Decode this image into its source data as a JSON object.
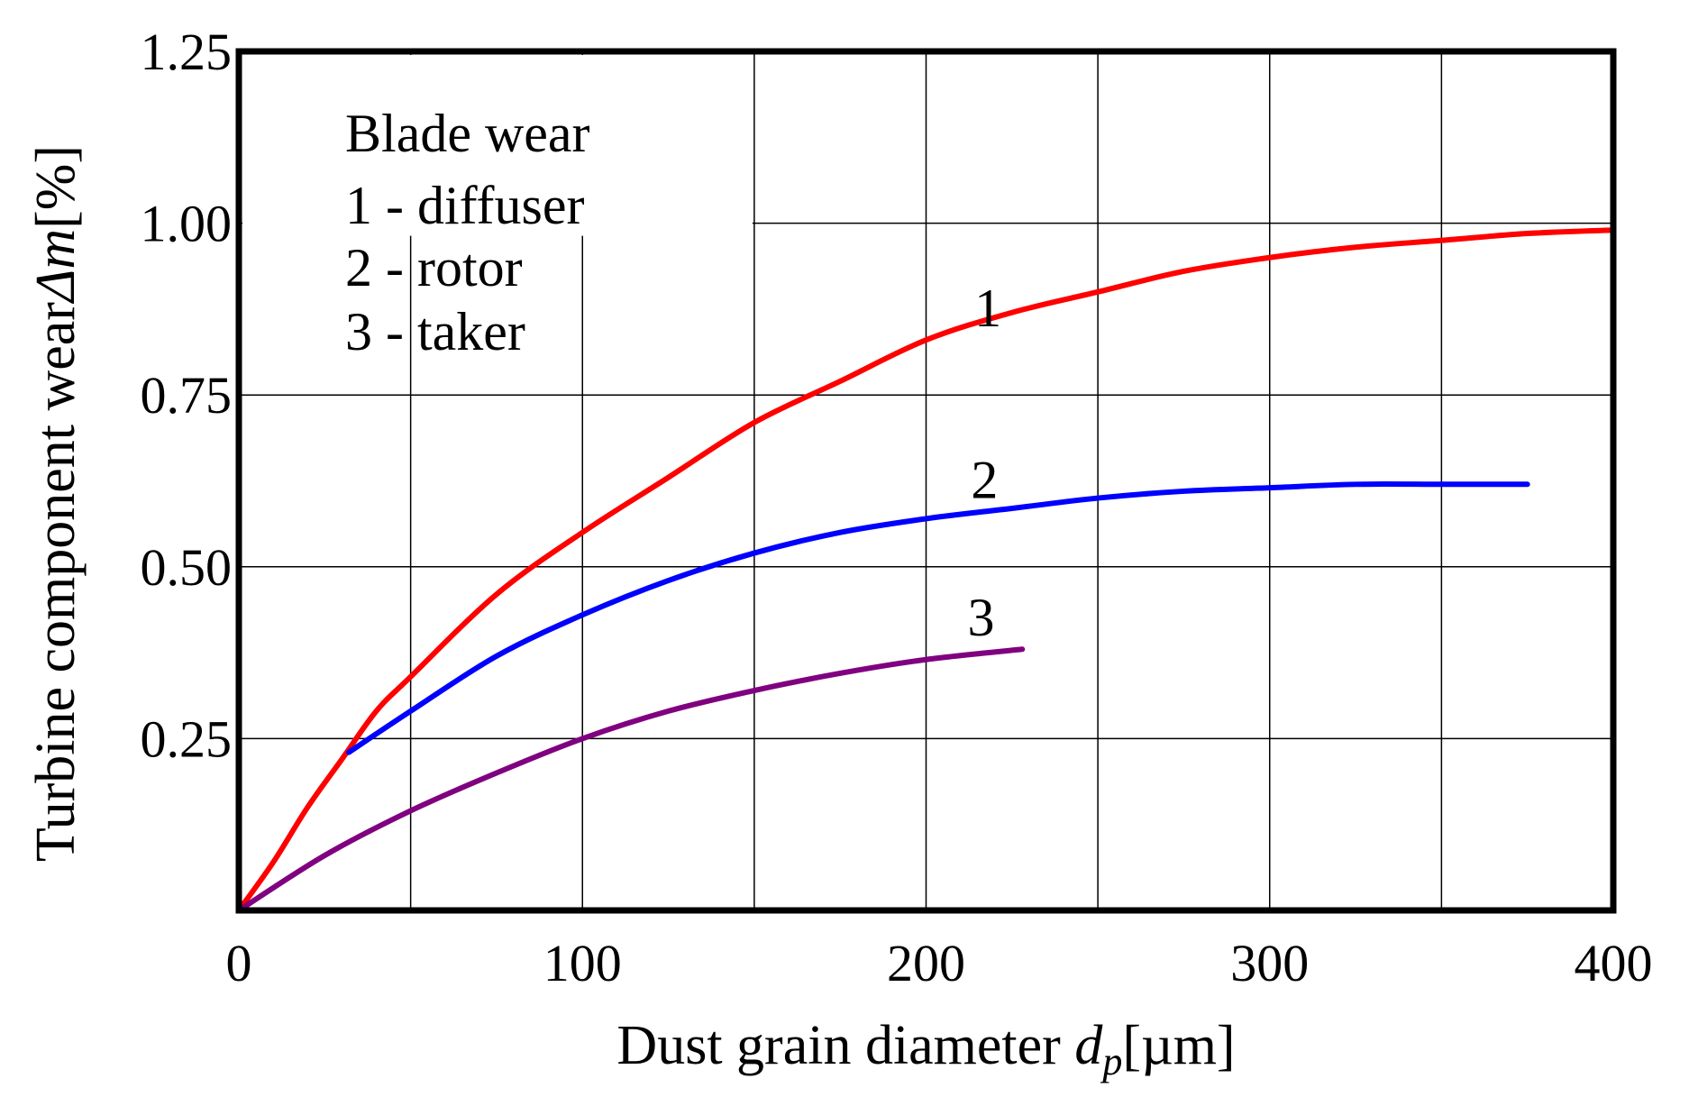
{
  "chart_data": {
    "type": "line",
    "xlabel": {
      "main": "Dust grain diameter ",
      "var": "d",
      "sub": "p",
      "unit": "[µm]"
    },
    "ylabel": {
      "main": "Turbine component wear",
      "var": "Δm",
      "unit": "[%]"
    },
    "xlim": [
      0,
      400
    ],
    "ylim": [
      0,
      1.25
    ],
    "x_ticks": [
      "0",
      "100",
      "200",
      "300",
      "400"
    ],
    "y_ticks": [
      "0.25",
      "0.50",
      "0.75",
      "1.00",
      "1.25"
    ],
    "grid": true,
    "legend": {
      "title": "Blade wear",
      "entries": [
        "1 - diffuser",
        "2 - rotor",
        "3 - taker"
      ],
      "placement": "top-left"
    },
    "series": [
      {
        "id": "1",
        "color": "#ff0000",
        "points": [
          [
            0,
            0
          ],
          [
            10,
            0.07
          ],
          [
            20,
            0.15
          ],
          [
            30,
            0.22
          ],
          [
            40,
            0.29
          ],
          [
            50,
            0.34
          ],
          [
            75,
            0.46
          ],
          [
            100,
            0.55
          ],
          [
            125,
            0.63
          ],
          [
            150,
            0.71
          ],
          [
            175,
            0.77
          ],
          [
            200,
            0.83
          ],
          [
            225,
            0.87
          ],
          [
            250,
            0.9
          ],
          [
            275,
            0.93
          ],
          [
            300,
            0.95
          ],
          [
            325,
            0.965
          ],
          [
            350,
            0.975
          ],
          [
            375,
            0.985
          ],
          [
            400,
            0.99
          ]
        ]
      },
      {
        "id": "2",
        "color": "#0000ff",
        "points": [
          [
            32,
            0.23
          ],
          [
            50,
            0.29
          ],
          [
            75,
            0.37
          ],
          [
            100,
            0.43
          ],
          [
            125,
            0.48
          ],
          [
            150,
            0.52
          ],
          [
            175,
            0.55
          ],
          [
            200,
            0.57
          ],
          [
            225,
            0.585
          ],
          [
            250,
            0.6
          ],
          [
            275,
            0.61
          ],
          [
            300,
            0.615
          ],
          [
            325,
            0.62
          ],
          [
            350,
            0.62
          ],
          [
            375,
            0.62
          ]
        ]
      },
      {
        "id": "3",
        "color": "#800080",
        "points": [
          [
            0,
            0
          ],
          [
            25,
            0.08
          ],
          [
            50,
            0.145
          ],
          [
            75,
            0.2
          ],
          [
            100,
            0.25
          ],
          [
            125,
            0.29
          ],
          [
            150,
            0.32
          ],
          [
            175,
            0.345
          ],
          [
            200,
            0.365
          ],
          [
            228,
            0.38
          ]
        ]
      }
    ],
    "curve_labels": [
      {
        "text": "1",
        "x": 218,
        "y": 0.85
      },
      {
        "text": "2",
        "x": 217,
        "y": 0.6
      },
      {
        "text": "3",
        "x": 216,
        "y": 0.4
      }
    ]
  }
}
